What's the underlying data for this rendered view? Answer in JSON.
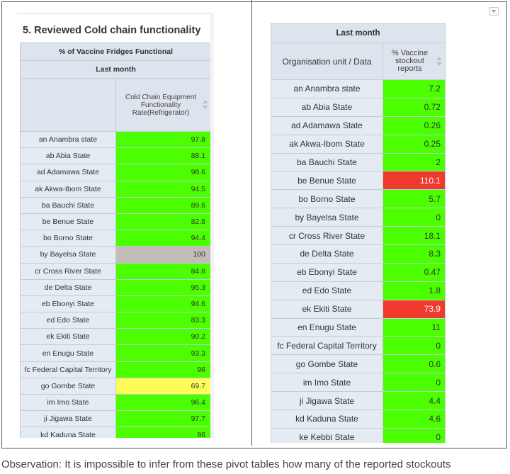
{
  "colors": {
    "green": "#4cff00",
    "yellow": "#fffd5a",
    "grey": "#c3bdba",
    "red": "#f03a2e",
    "header_bg": "#dde4ed",
    "name_bg": "#e4ebf3"
  },
  "left": {
    "title": "5. Reviewed Cold chain functionality",
    "header_group": "% of Vaccine Fridges Functional",
    "header_period": "Last month",
    "column_header": "Cold Chain Equipment Functionality Rate(Refrigerator)",
    "rows": [
      {
        "name": "an Anambra state",
        "value": "97.8",
        "color": "green"
      },
      {
        "name": "ab Abia State",
        "value": "88.1",
        "color": "green"
      },
      {
        "name": "ad Adamawa State",
        "value": "98.6",
        "color": "green"
      },
      {
        "name": "ak Akwa-Ibom State",
        "value": "94.5",
        "color": "green"
      },
      {
        "name": "ba Bauchi State",
        "value": "89.6",
        "color": "green"
      },
      {
        "name": "be Benue State",
        "value": "82.8",
        "color": "green"
      },
      {
        "name": "bo Borno State",
        "value": "94.4",
        "color": "green"
      },
      {
        "name": "by Bayelsa State",
        "value": "100",
        "color": "grey"
      },
      {
        "name": "cr Cross River State",
        "value": "84.8",
        "color": "green"
      },
      {
        "name": "de Delta State",
        "value": "95.3",
        "color": "green"
      },
      {
        "name": "eb Ebonyi State",
        "value": "94.6",
        "color": "green"
      },
      {
        "name": "ed Edo State",
        "value": "83.3",
        "color": "green"
      },
      {
        "name": "ek Ekiti State",
        "value": "90.2",
        "color": "green"
      },
      {
        "name": "en Enugu State",
        "value": "93.3",
        "color": "green"
      },
      {
        "name": "fc Federal Capital Territory",
        "value": "96",
        "color": "green"
      },
      {
        "name": "go Gombe State",
        "value": "69.7",
        "color": "yellow"
      },
      {
        "name": "im Imo State",
        "value": "96.4",
        "color": "green"
      },
      {
        "name": "ji Jigawa State",
        "value": "97.7",
        "color": "green"
      },
      {
        "name": "kd Kaduna State",
        "value": "86",
        "color": "green"
      }
    ]
  },
  "right": {
    "header_period": "Last month",
    "org_header": "Organisation unit / Data",
    "column_header": "% Vaccine stockout reports",
    "rows": [
      {
        "name": "an Anambra state",
        "value": "7.2",
        "color": "green"
      },
      {
        "name": "ab Abia State",
        "value": "0.72",
        "color": "green"
      },
      {
        "name": "ad Adamawa State",
        "value": "0.26",
        "color": "green"
      },
      {
        "name": "ak Akwa-Ibom State",
        "value": "0.25",
        "color": "green"
      },
      {
        "name": "ba Bauchi State",
        "value": "2",
        "color": "green"
      },
      {
        "name": "be Benue State",
        "value": "110.1",
        "color": "red"
      },
      {
        "name": "bo Borno State",
        "value": "5.7",
        "color": "green"
      },
      {
        "name": "by Bayelsa State",
        "value": "0",
        "color": "green"
      },
      {
        "name": "cr Cross River State",
        "value": "18.1",
        "color": "green"
      },
      {
        "name": "de Delta State",
        "value": "8.3",
        "color": "green"
      },
      {
        "name": "eb Ebonyi State",
        "value": "0.47",
        "color": "green"
      },
      {
        "name": "ed Edo State",
        "value": "1.8",
        "color": "green"
      },
      {
        "name": "ek Ekiti State",
        "value": "73.9",
        "color": "red"
      },
      {
        "name": "en Enugu State",
        "value": "11",
        "color": "green"
      },
      {
        "name": "fc Federal Capital Territory",
        "value": "0",
        "color": "green"
      },
      {
        "name": "go Gombe State",
        "value": "0.6",
        "color": "green"
      },
      {
        "name": "im Imo State",
        "value": "0",
        "color": "green"
      },
      {
        "name": "ji Jigawa State",
        "value": "4.4",
        "color": "green"
      },
      {
        "name": "kd Kaduna State",
        "value": "4.6",
        "color": "green"
      },
      {
        "name": "ke Kebbi State",
        "value": "0",
        "color": "green"
      }
    ]
  },
  "caption": "Observation: It is impossible to infer from these pivot tables how many of the reported stockouts"
}
